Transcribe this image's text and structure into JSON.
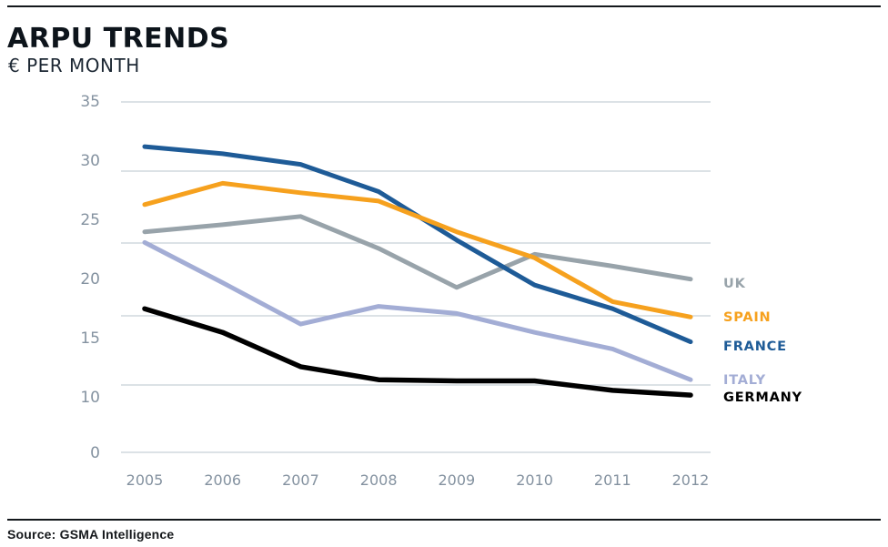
{
  "chart_data": {
    "type": "line",
    "title": "ARPU TRENDS",
    "subtitle": "€ PER MONTH",
    "source": "Source: GSMA Intelligence",
    "categories": [
      "2005",
      "2006",
      "2007",
      "2008",
      "2009",
      "2010",
      "2011",
      "2012"
    ],
    "yticks": [
      "35",
      "30",
      "25",
      "20",
      "15",
      "10",
      "0"
    ],
    "ylim": [
      0,
      35
    ],
    "xlabel": "",
    "ylabel": "€ per month",
    "grid": "horizontal-only",
    "legend_position": "right-of-line-ends",
    "series": [
      {
        "name": "UK",
        "color": "#98A3AA",
        "values": [
          24.0,
          24.6,
          25.3,
          22.6,
          19.3,
          22.1,
          21.1,
          20.0
        ]
      },
      {
        "name": "SPAIN",
        "color": "#F6A11E",
        "values": [
          26.3,
          28.1,
          27.3,
          26.6,
          24.0,
          21.8,
          18.1,
          16.8
        ]
      },
      {
        "name": "FRANCE",
        "color": "#1E5B97",
        "values": [
          31.2,
          30.6,
          29.7,
          27.4,
          23.3,
          19.5,
          17.5,
          14.7
        ]
      },
      {
        "name": "ITALY",
        "color": "#A3ADD5",
        "values": [
          23.1,
          19.7,
          16.2,
          17.7,
          17.1,
          15.5,
          14.1,
          11.5
        ]
      },
      {
        "name": "GERMANY",
        "color": "#000000",
        "values": [
          17.5,
          15.5,
          12.6,
          11.5,
          11.4,
          11.4,
          10.6,
          10.2
        ]
      }
    ]
  }
}
